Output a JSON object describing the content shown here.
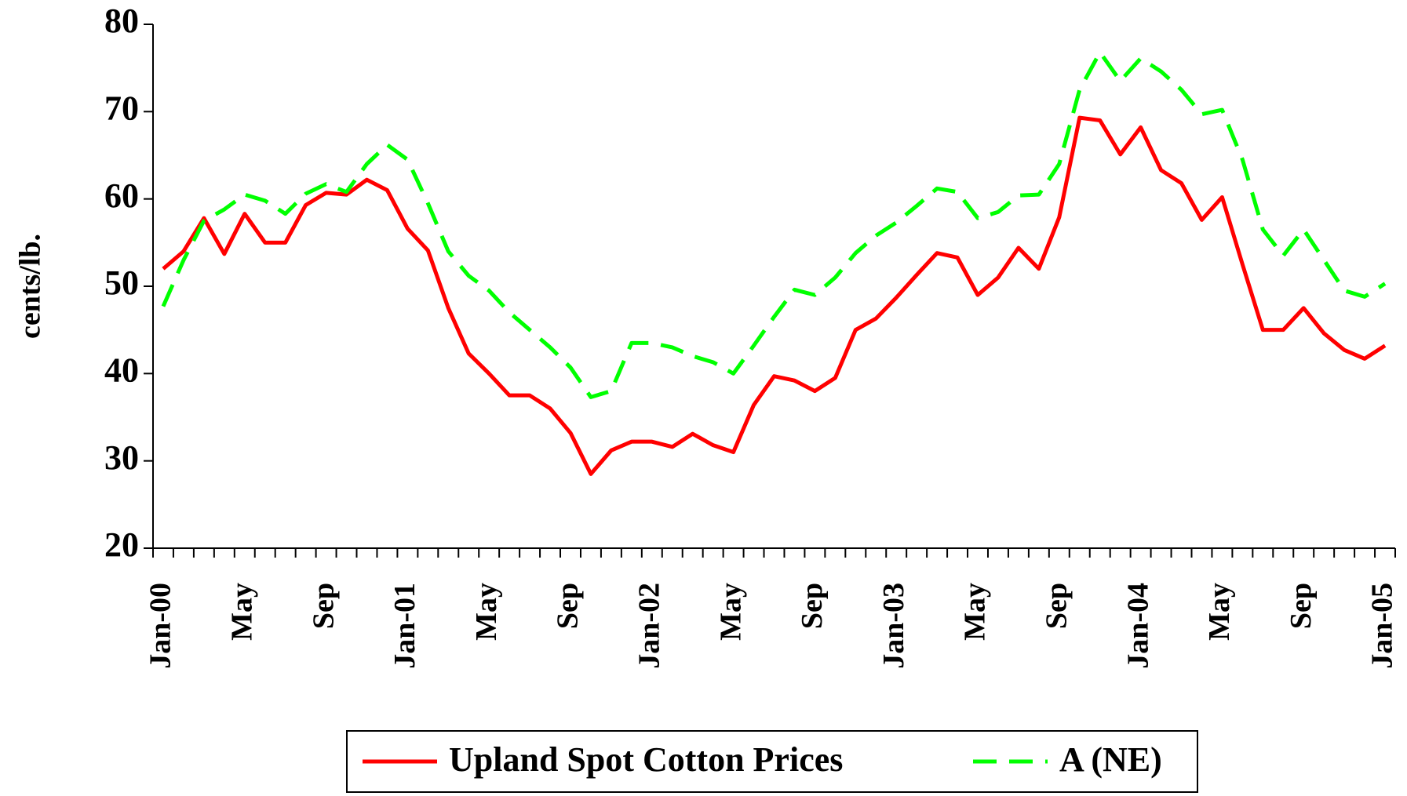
{
  "chart_data": {
    "type": "line",
    "y_label": "cents/lb.",
    "categories": [
      "Jan-00",
      null,
      null,
      null,
      "May",
      null,
      null,
      null,
      "Sep",
      null,
      null,
      null,
      "Jan-01",
      null,
      null,
      null,
      "May",
      null,
      null,
      null,
      "Sep",
      null,
      null,
      null,
      "Jan-02",
      null,
      null,
      null,
      "May",
      null,
      null,
      null,
      "Sep",
      null,
      null,
      null,
      "Jan-03",
      null,
      null,
      null,
      "May",
      null,
      null,
      null,
      "Sep",
      null,
      null,
      null,
      "Jan-04",
      null,
      null,
      null,
      "May",
      null,
      null,
      null,
      "Sep",
      null,
      null,
      null,
      "Jan-05"
    ],
    "series": [
      {
        "name": "Upland Spot Cotton Prices",
        "color": "#ff0000",
        "dash": false,
        "values": [
          52,
          54,
          57.8,
          53.7,
          58.3,
          55,
          55,
          59.3,
          60.7,
          60.5,
          62.2,
          61,
          56.6,
          54.1,
          47.5,
          42.3,
          40,
          37.5,
          37.5,
          36,
          33.2,
          28.5,
          31.2,
          32.2,
          32.2,
          31.6,
          33.1,
          31.8,
          31,
          36.4,
          39.7,
          39.2,
          38,
          39.5,
          45,
          46.3,
          48.7,
          51.3,
          53.8,
          53.3,
          49,
          51,
          54.4,
          52,
          57.9,
          69.3,
          69,
          65.1,
          68.2,
          63.3,
          61.8,
          57.6,
          60.2,
          52.5,
          45,
          45,
          47.5,
          44.6,
          42.7,
          41.7,
          43.2
        ]
      },
      {
        "name": "A (NE)",
        "color": "#00ff00",
        "dash": true,
        "values": [
          47.7,
          53,
          57.5,
          58.8,
          60.5,
          59.8,
          58.3,
          60.6,
          61.7,
          60.8,
          64,
          66.2,
          64.5,
          59.5,
          54,
          51.2,
          49.5,
          47,
          45,
          43,
          40.7,
          37.3,
          38,
          43.5,
          43.5,
          43,
          42,
          41.3,
          40,
          43.2,
          46.5,
          49.6,
          49,
          51,
          53.8,
          55.8,
          57.3,
          59.2,
          61.2,
          60.8,
          57.8,
          58.5,
          60.4,
          60.5,
          64,
          72.5,
          76.8,
          73.5,
          76.1,
          74.6,
          72.5,
          69.7,
          70.2,
          64.5,
          56.5,
          53.5,
          56.5,
          53,
          49.5,
          48.8,
          50.3
        ]
      }
    ],
    "ylim": [
      20,
      80
    ],
    "yticks": [
      20,
      30,
      40,
      50,
      60,
      70,
      80
    ],
    "grid": false,
    "legend": "bottom"
  }
}
